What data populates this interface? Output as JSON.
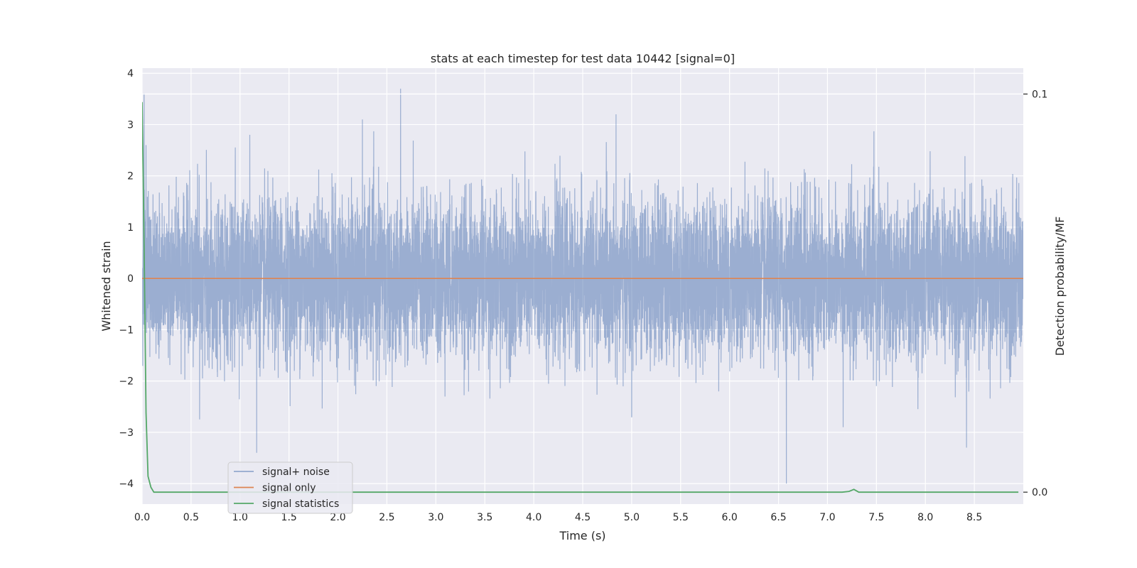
{
  "chart_data": {
    "type": "line",
    "title": "stats at each timestep for test data 10442 [signal=0]",
    "xlabel": "Time (s)",
    "ylabel": "Whitened strain",
    "y2label": "Detection probability/MF",
    "xlim": [
      0.0,
      9.0
    ],
    "ylim": [
      -4.4,
      4.1
    ],
    "y2lim": [
      -0.003,
      0.1065
    ],
    "x_ticks": [
      "0.0",
      "0.5",
      "1.0",
      "1.5",
      "2.0",
      "2.5",
      "3.0",
      "3.5",
      "4.0",
      "4.5",
      "5.0",
      "5.5",
      "6.0",
      "6.5",
      "7.0",
      "7.5",
      "8.0",
      "8.5"
    ],
    "y_ticks": [
      "4",
      "3",
      "2",
      "1",
      "0",
      "−1",
      "−2",
      "−3",
      "−4"
    ],
    "y2_ticks": [
      "0.1",
      "0.0"
    ],
    "grid": true,
    "legend_position": "lower-left",
    "series": [
      {
        "name": "signal+ noise",
        "color": "#4c72b0",
        "style": "noise",
        "sample_rate_hz": 2048,
        "approx_std": 0.75,
        "notable_peaks": [
          {
            "x": 0.02,
            "y": 3.6
          },
          {
            "x": 0.04,
            "y": 2.6
          },
          {
            "x": 1.1,
            "y": 2.8
          },
          {
            "x": 1.17,
            "y": -3.4
          },
          {
            "x": 2.25,
            "y": 3.1
          },
          {
            "x": 2.64,
            "y": 3.7
          },
          {
            "x": 4.84,
            "y": 3.2
          },
          {
            "x": 5.0,
            "y": -2.7
          },
          {
            "x": 6.58,
            "y": -4.0
          },
          {
            "x": 7.16,
            "y": -2.9
          },
          {
            "x": 8.42,
            "y": -3.3
          }
        ]
      },
      {
        "name": "signal only",
        "color": "#dd8452",
        "x": [
          0.0,
          9.0
        ],
        "y": [
          0.0,
          0.0
        ]
      },
      {
        "name": "signal statistics",
        "color": "#55a868",
        "axis": "right",
        "x": [
          0.0,
          0.02,
          0.04,
          0.06,
          0.09,
          0.12,
          7.15,
          7.22,
          7.27,
          7.32,
          8.95
        ],
        "y": [
          0.098,
          0.062,
          0.02,
          0.004,
          0.0012,
          0.0,
          0.0,
          0.0002,
          0.0007,
          0.0,
          0.0
        ]
      }
    ]
  }
}
